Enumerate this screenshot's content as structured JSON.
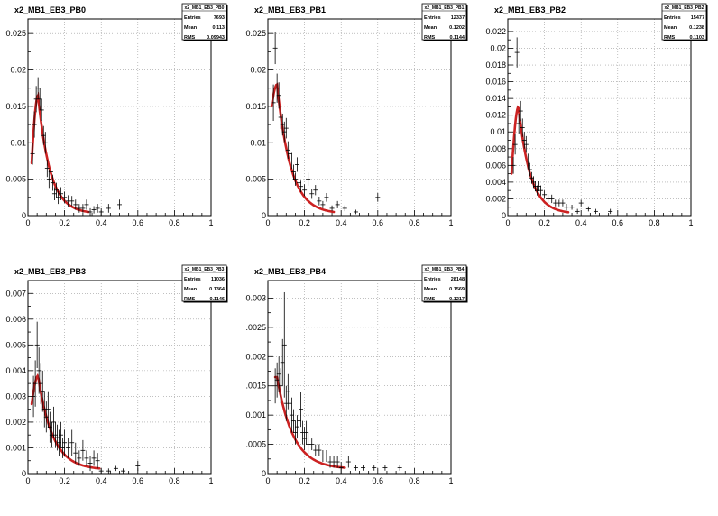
{
  "chart_data": [
    {
      "type": "scatter",
      "title": "x2_MB1_EB3_PB0",
      "xlabel": "",
      "ylabel": "",
      "xlim": [
        0,
        1
      ],
      "ylim": [
        0,
        0.027
      ],
      "x_ticks": [
        "0",
        "0.2",
        "0.4",
        "0.6",
        "0.8",
        "1"
      ],
      "y_ticks": [
        0,
        0.005,
        0.01,
        0.015,
        0.02,
        0.025
      ],
      "y_tick_labels": [
        "0",
        "0.005",
        "0.01",
        "0.015",
        "0.02",
        "0.025"
      ],
      "grid": true,
      "stats": {
        "name": "x2_MB1_EB3_PB0",
        "rows": [
          [
            "Entries",
            "7693"
          ],
          [
            "Mean",
            "0.113"
          ],
          [
            "RMS",
            "0.09943"
          ]
        ]
      },
      "fit": {
        "x0": 0.02,
        "x1": 0.33,
        "peak_x": 0.055,
        "peak_y": 0.0165,
        "start_y": 0.0072,
        "end_y": 0.0005
      },
      "series": [
        {
          "x": [
            0.025,
            0.035,
            0.045,
            0.055,
            0.065,
            0.075,
            0.085,
            0.095,
            0.105,
            0.115,
            0.125,
            0.135,
            0.145,
            0.155,
            0.165,
            0.18,
            0.2,
            0.22,
            0.24,
            0.26,
            0.28,
            0.3,
            0.32,
            0.34,
            0.36,
            0.38,
            0.4,
            0.44,
            0.5
          ],
          "y": [
            0.0085,
            0.0125,
            0.016,
            0.0175,
            0.016,
            0.0145,
            0.011,
            0.01,
            0.0065,
            0.005,
            0.006,
            0.0045,
            0.003,
            0.0035,
            0.0025,
            0.003,
            0.0025,
            0.002,
            0.002,
            0.0015,
            0.001,
            0.001,
            0.0015,
            0.0005,
            0.0008,
            0.001,
            0.0005,
            0.001,
            0.0015
          ],
          "err": [
            0.0015,
            0.0018,
            0.0018,
            0.0015,
            0.0015,
            0.0015,
            0.0013,
            0.0015,
            0.0012,
            0.0012,
            0.0012,
            0.0011,
            0.0009,
            0.001,
            0.0009,
            0.0009,
            0.0008,
            0.0008,
            0.0007,
            0.0007,
            0.0006,
            0.0006,
            0.0007,
            0.0005,
            0.0005,
            0.0006,
            0.0005,
            0.0006,
            0.0007
          ]
        }
      ]
    },
    {
      "type": "scatter",
      "title": "x2_MB1_EB3_PB1",
      "xlabel": "",
      "ylabel": "",
      "xlim": [
        0,
        1
      ],
      "ylim": [
        0,
        0.027
      ],
      "x_ticks": [
        "0",
        "0.2",
        "0.4",
        "0.6",
        "0.8",
        "1"
      ],
      "y_ticks": [
        0,
        0.005,
        0.01,
        0.015,
        0.02,
        0.025
      ],
      "y_tick_labels": [
        "0",
        "0.005",
        "0.01",
        "0.015",
        "0.02",
        "0.025"
      ],
      "grid": true,
      "stats": {
        "name": "x2_MB1_EB3_PB1",
        "rows": [
          [
            "Entries",
            "12337"
          ],
          [
            "Mean",
            "0.1202"
          ],
          [
            "RMS",
            "0.1144"
          ]
        ]
      },
      "fit": {
        "x0": 0.02,
        "x1": 0.36,
        "peak_x": 0.05,
        "peak_y": 0.018,
        "start_y": 0.015,
        "end_y": 0.0005
      },
      "series": [
        {
          "x": [
            0.03,
            0.04,
            0.05,
            0.06,
            0.07,
            0.08,
            0.09,
            0.1,
            0.11,
            0.12,
            0.13,
            0.14,
            0.15,
            0.16,
            0.17,
            0.18,
            0.2,
            0.22,
            0.24,
            0.26,
            0.28,
            0.3,
            0.32,
            0.35,
            0.38,
            0.42,
            0.48,
            0.6
          ],
          "y": [
            0.0155,
            0.023,
            0.0175,
            0.0165,
            0.0135,
            0.0125,
            0.0115,
            0.012,
            0.009,
            0.0085,
            0.0075,
            0.006,
            0.005,
            0.007,
            0.0045,
            0.004,
            0.0035,
            0.005,
            0.003,
            0.0035,
            0.002,
            0.0015,
            0.0025,
            0.001,
            0.0015,
            0.001,
            0.0005,
            0.0025
          ],
          "err": [
            0.0025,
            0.0022,
            0.002,
            0.0018,
            0.0016,
            0.0015,
            0.0014,
            0.0014,
            0.0012,
            0.0012,
            0.0011,
            0.001,
            0.0009,
            0.001,
            0.0009,
            0.0008,
            0.0008,
            0.0009,
            0.0007,
            0.0007,
            0.0006,
            0.0005,
            0.0006,
            0.0004,
            0.0005,
            0.0004,
            0.0003,
            0.0006
          ]
        }
      ]
    },
    {
      "type": "scatter",
      "title": "x2_MB1_EB3_PB2",
      "xlabel": "",
      "ylabel": "",
      "xlim": [
        0,
        1
      ],
      "ylim": [
        0,
        0.0235
      ],
      "x_ticks": [
        "0",
        "0.2",
        "0.4",
        "0.6",
        "0.8",
        "1"
      ],
      "y_ticks": [
        0,
        0.002,
        0.004,
        0.006,
        0.008,
        0.01,
        0.012,
        0.014,
        0.016,
        0.018,
        0.02,
        0.022
      ],
      "y_tick_labels": [
        "0",
        "0.002",
        "0.004",
        "0.006",
        "0.008",
        "0.01",
        "0.012",
        "0.014",
        "0.016",
        "0.018",
        "0.02",
        "0.022"
      ],
      "grid": true,
      "stats": {
        "name": "x2_MB1_EB3_PB2",
        "rows": [
          [
            "Entries",
            "15477"
          ],
          [
            "Mean",
            "0.1238"
          ],
          [
            "RMS",
            "0.1103"
          ]
        ]
      },
      "fit": {
        "x0": 0.02,
        "x1": 0.33,
        "peak_x": 0.058,
        "peak_y": 0.013,
        "start_y": 0.005,
        "end_y": 0.0004
      },
      "series": [
        {
          "x": [
            0.03,
            0.04,
            0.05,
            0.06,
            0.07,
            0.08,
            0.09,
            0.1,
            0.11,
            0.12,
            0.13,
            0.14,
            0.15,
            0.16,
            0.17,
            0.18,
            0.2,
            0.22,
            0.24,
            0.26,
            0.28,
            0.3,
            0.32,
            0.35,
            0.38,
            0.4,
            0.44,
            0.48,
            0.56
          ],
          "y": [
            0.006,
            0.0085,
            0.0195,
            0.011,
            0.0125,
            0.0105,
            0.009,
            0.0085,
            0.0065,
            0.0055,
            0.0045,
            0.004,
            0.0035,
            0.003,
            0.0035,
            0.003,
            0.0025,
            0.002,
            0.002,
            0.0015,
            0.0015,
            0.0015,
            0.001,
            0.001,
            0.0005,
            0.0015,
            0.0008,
            0.0005,
            0.0005
          ],
          "err": [
            0.001,
            0.0012,
            0.0018,
            0.0012,
            0.0012,
            0.0011,
            0.001,
            0.001,
            0.0009,
            0.0008,
            0.0007,
            0.0007,
            0.0006,
            0.0006,
            0.0006,
            0.0006,
            0.0005,
            0.0005,
            0.0005,
            0.0004,
            0.0004,
            0.0004,
            0.0004,
            0.0003,
            0.0003,
            0.0004,
            0.0003,
            0.0003,
            0.0003
          ]
        }
      ]
    },
    {
      "type": "scatter",
      "title": "x2_MB1_EB3_PB3",
      "xlabel": "",
      "ylabel": "",
      "xlim": [
        0,
        1
      ],
      "ylim": [
        0,
        0.0075
      ],
      "x_ticks": [
        "0",
        "0.2",
        "0.4",
        "0.6",
        "0.8",
        "1"
      ],
      "y_ticks": [
        0,
        0.001,
        0.002,
        0.003,
        0.004,
        0.005,
        0.006,
        0.007
      ],
      "y_tick_labels": [
        "0",
        "0.001",
        "0.002",
        "0.003",
        "0.004",
        "0.005",
        "0.006",
        "0.007"
      ],
      "grid": true,
      "stats": {
        "name": "x2_MB1_EB3_PB3",
        "rows": [
          [
            "Entries",
            "11036"
          ],
          [
            "Mean",
            "0.1364"
          ],
          [
            "RMS",
            "0.1146"
          ]
        ]
      },
      "fit": {
        "x0": 0.02,
        "x1": 0.39,
        "peak_x": 0.055,
        "peak_y": 0.0038,
        "start_y": 0.0027,
        "end_y": 0.0002
      },
      "series": [
        {
          "x": [
            0.03,
            0.04,
            0.05,
            0.06,
            0.07,
            0.08,
            0.09,
            0.1,
            0.11,
            0.12,
            0.13,
            0.14,
            0.15,
            0.16,
            0.17,
            0.18,
            0.19,
            0.2,
            0.22,
            0.24,
            0.26,
            0.28,
            0.3,
            0.32,
            0.34,
            0.36,
            0.38,
            0.4,
            0.44,
            0.48,
            0.52,
            0.6
          ],
          "y": [
            0.003,
            0.0035,
            0.005,
            0.004,
            0.0035,
            0.0032,
            0.0025,
            0.0022,
            0.0025,
            0.0018,
            0.0015,
            0.002,
            0.0015,
            0.0014,
            0.0012,
            0.0015,
            0.001,
            0.0012,
            0.001,
            0.0012,
            0.0008,
            0.0006,
            0.0009,
            0.0006,
            0.0004,
            0.0006,
            0.0005,
            0.0001,
            0.0001,
            0.0002,
            0.0001,
            0.0003
          ],
          "err": [
            0.0008,
            0.0009,
            0.0009,
            0.0009,
            0.0008,
            0.0008,
            0.0007,
            0.0006,
            0.0007,
            0.0006,
            0.0005,
            0.0006,
            0.0005,
            0.0005,
            0.0005,
            0.0005,
            0.0004,
            0.0005,
            0.0004,
            0.0005,
            0.0004,
            0.0003,
            0.0004,
            0.0003,
            0.0003,
            0.0003,
            0.0003,
            0.0001,
            0.0001,
            0.0001,
            0.0001,
            0.0002
          ]
        }
      ]
    },
    {
      "type": "scatter",
      "title": "x2_MB1_EB3_PB4",
      "xlabel": "",
      "ylabel": "",
      "xlim": [
        0,
        1
      ],
      "ylim": [
        0,
        0.0033
      ],
      "x_ticks": [
        "0",
        "0.2",
        "0.4",
        "0.6",
        "0.8",
        "1"
      ],
      "y_ticks": [
        0,
        0.0005,
        0.001,
        0.0015,
        0.002,
        0.0025,
        0.003
      ],
      "y_tick_labels": [
        "0",
        ".0005",
        "0.001",
        ".0015",
        "0.002",
        ".0025",
        "0.003"
      ],
      "grid": true,
      "stats": {
        "name": "x2_MB1_EB3_PB4",
        "rows": [
          [
            "Entries",
            "28148"
          ],
          [
            "Mean",
            "0.1569"
          ],
          [
            "RMS",
            "0.1217"
          ]
        ]
      },
      "fit": {
        "x0": 0.04,
        "x1": 0.42,
        "peak_x": 0.05,
        "peak_y": 0.00165,
        "start_y": 0.00165,
        "end_y": 0.0001
      },
      "series": [
        {
          "x": [
            0.04,
            0.05,
            0.06,
            0.07,
            0.08,
            0.09,
            0.1,
            0.11,
            0.12,
            0.13,
            0.14,
            0.15,
            0.16,
            0.17,
            0.18,
            0.19,
            0.2,
            0.21,
            0.22,
            0.24,
            0.26,
            0.28,
            0.3,
            0.32,
            0.34,
            0.36,
            0.38,
            0.4,
            0.44,
            0.48,
            0.52,
            0.58,
            0.64,
            0.72
          ],
          "y": [
            0.0015,
            0.0016,
            0.0017,
            0.0015,
            0.0019,
            0.0022,
            0.0012,
            0.0014,
            0.0012,
            0.001,
            0.0009,
            0.0007,
            0.0008,
            0.0009,
            0.0011,
            0.0007,
            0.0006,
            0.0007,
            0.0005,
            0.0005,
            0.0004,
            0.0004,
            0.0003,
            0.0003,
            0.0002,
            0.0002,
            0.0002,
            0.0001,
            0.0002,
            0.0001,
            0.0001,
            0.0001,
            0.0001,
            0.0001
          ],
          "err": [
            0.0003,
            0.0003,
            0.0003,
            0.0003,
            0.0004,
            0.0009,
            0.0003,
            0.0003,
            0.0003,
            0.0003,
            0.0002,
            0.0002,
            0.0002,
            0.0002,
            0.0003,
            0.0002,
            0.0002,
            0.0002,
            0.0002,
            0.0001,
            0.0001,
            0.0001,
            0.0001,
            0.0001,
            0.0001,
            0.0001,
            0.0001,
            0.0001,
            0.0001,
            5e-05,
            5e-05,
            5e-05,
            5e-05,
            5e-05
          ]
        }
      ]
    }
  ],
  "colors": {
    "fit": "#cc2222",
    "points": "#000000",
    "grid": "#9a9a9a",
    "frame": "#000000",
    "background": "#ffffff"
  }
}
